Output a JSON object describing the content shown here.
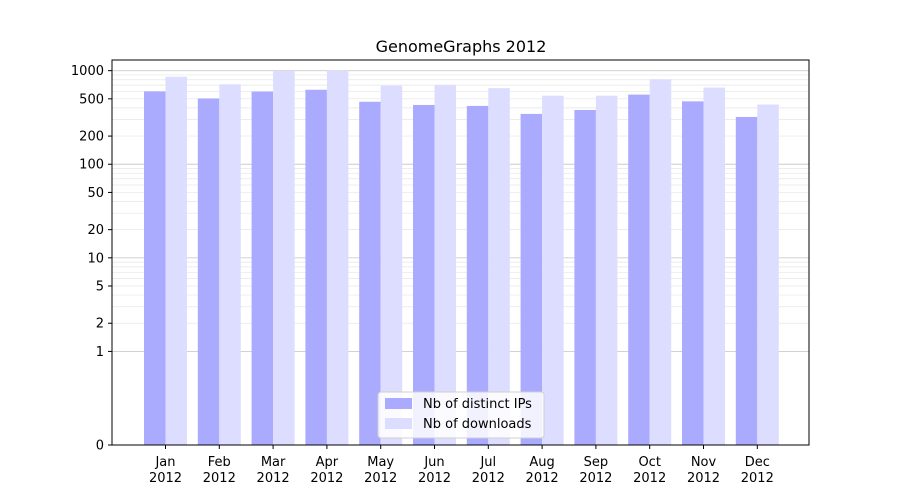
{
  "chart_data": {
    "type": "bar",
    "title": "GenomeGraphs 2012",
    "xlabel": "",
    "ylabel": "",
    "y_scale": "symlog",
    "ylim": [
      0,
      1300
    ],
    "y_ticks": [
      0,
      1,
      2,
      5,
      10,
      20,
      50,
      100,
      200,
      500,
      1000
    ],
    "grid": true,
    "legend_position": "bottom-center",
    "categories": [
      [
        "Jan",
        "2012"
      ],
      [
        "Feb",
        "2012"
      ],
      [
        "Mar",
        "2012"
      ],
      [
        "Apr",
        "2012"
      ],
      [
        "May",
        "2012"
      ],
      [
        "Jun",
        "2012"
      ],
      [
        "Jul",
        "2012"
      ],
      [
        "Aug",
        "2012"
      ],
      [
        "Sep",
        "2012"
      ],
      [
        "Oct",
        "2012"
      ],
      [
        "Nov",
        "2012"
      ],
      [
        "Dec",
        "2012"
      ]
    ],
    "series": [
      {
        "name": "Nb of distinct IPs",
        "color": "#aaaaff",
        "values": [
          600,
          505,
          598,
          625,
          465,
          430,
          420,
          345,
          380,
          555,
          470,
          320
        ]
      },
      {
        "name": "Nb of downloads",
        "color": "#ddddff",
        "values": [
          860,
          715,
          995,
          1000,
          690,
          700,
          650,
          540,
          540,
          810,
          660,
          435
        ]
      }
    ]
  }
}
